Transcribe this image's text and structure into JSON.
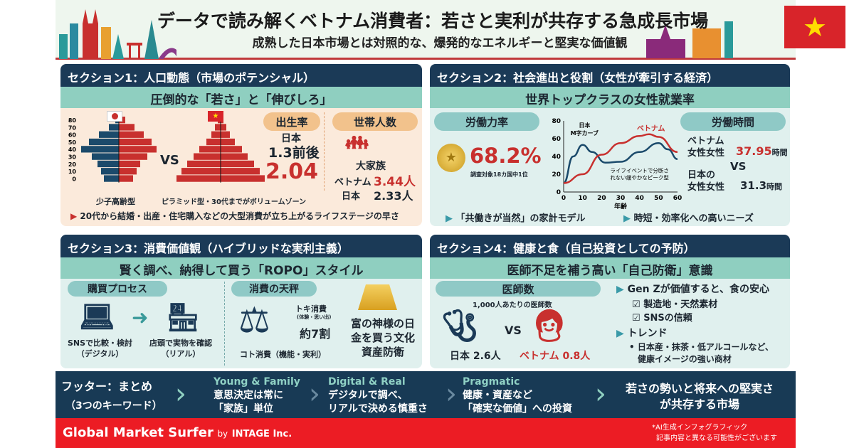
{
  "header": {
    "title": "データで読み解くベトナム消費者：若さと実利が共存する急成長市場",
    "subtitle": "成熟した日本市場とは対照的な、爆発的なエネルギーと堅実な価値観",
    "flag_icon": "vietnam-flag-icon"
  },
  "s1": {
    "title": "セクション1：人口動態（市場のポテンシャル）",
    "sub": "圧倒的な「若さ」と「伸びしろ」",
    "vs": "VS",
    "jp_caption": "少子高齢型",
    "vn_caption": "ピラミッド型・30代までがボリュームゾーン",
    "birth": {
      "label": "出生率",
      "jp_label": "日本",
      "jp_value": "1.3前後",
      "vn_value": "2.04"
    },
    "household": {
      "label": "世帯人数",
      "tag": "大家族",
      "vn_label": "ベトナム",
      "vn_value": "3.44人",
      "jp_label": "日本",
      "jp_value": "2.33人"
    },
    "note": "20代から結婚・出産・住宅購入などの大型消費が立ち上がるライフステージの早さ"
  },
  "s2": {
    "title": "セクション2：社会進出と役割（女性が牽引する経済）",
    "sub": "世界トップクラスの女性就業率",
    "labor": {
      "label": "労働力率",
      "value": "68.2%",
      "note": "調査対象18カ国中1位"
    },
    "hours": {
      "label": "労働時間",
      "vn_l1": "ベトナム",
      "vn_l2": "女性女性",
      "vn_value": "37.95",
      "unit": "時間",
      "vs": "VS",
      "jp_l1": "日本の",
      "jp_l2": "女性女性",
      "jp_value": "31.3"
    },
    "notes": [
      "「共働きが当然」の家計モデル",
      "時短・効率化への高いニーズ"
    ]
  },
  "chart_data": [
    {
      "type": "line",
      "xlabel": "年齢",
      "ylabel": "",
      "xlim": [
        0,
        60
      ],
      "ylim": [
        0,
        80
      ],
      "xticks": [
        0,
        10,
        20,
        30,
        40,
        50,
        60
      ],
      "yticks": [
        0,
        20,
        40,
        60,
        80
      ],
      "grid": false,
      "series": [
        {
          "name": "日本 M字カーブ",
          "color": "#1b4a6b",
          "x": [
            0,
            5,
            10,
            15,
            22,
            30,
            40,
            50,
            55,
            60
          ],
          "y": [
            10,
            40,
            53,
            45,
            33,
            34,
            45,
            55,
            48,
            37
          ]
        },
        {
          "name": "ベトナム",
          "color": "#c8302e",
          "x": [
            0,
            10,
            20,
            30,
            40,
            45,
            50,
            60
          ],
          "y": [
            10,
            20,
            42,
            55,
            63,
            65,
            62,
            45
          ]
        }
      ],
      "annotation": [
        "ライフイベントで分断さ",
        "れない緩やかなピーク型"
      ]
    },
    {
      "type": "bar",
      "orientation": "horizontal",
      "categories": [
        "80",
        "70",
        "60",
        "50",
        "40",
        "30",
        "20",
        "10",
        "0"
      ],
      "series": [
        {
          "name": "日本",
          "color": "#1b4a6b",
          "values": [
            5,
            14,
            28,
            42,
            53,
            38,
            30,
            25,
            21
          ]
        },
        {
          "name": "日本",
          "color": "#c8302e",
          "values": [
            9,
            22,
            35,
            46,
            53,
            40,
            30,
            25,
            20
          ]
        },
        {
          "name": "ベトナム",
          "color": "#c8302e",
          "values": [
            4,
            8,
            13,
            20,
            30,
            38,
            47,
            55,
            62
          ]
        }
      ]
    }
  ],
  "s3": {
    "title": "セクション3：消費価値観（ハイブリッドな実利主義）",
    "sub": "賢く調べ、納得して買う「ROPO」スタイル",
    "process": {
      "label": "購買プロセス",
      "digital": "SNSで比較・検討",
      "digital2": "（デジタル）",
      "real": "店頭で実物を確認",
      "real2": "（リアル）"
    },
    "balance": {
      "label": "消費の天秤",
      "toki": "トキ消費",
      "toki_sub": "(体験・思い出)",
      "share": "約7割",
      "koto": "コト消費（機能・実利）"
    },
    "gold": [
      "富の神様の日",
      "金を買う文化",
      "資産防衛"
    ]
  },
  "s4": {
    "title": "セクション4：健康と食（自己投資としての予防）",
    "sub": "医師不足を補う高い「自己防衛」意識",
    "doctors": {
      "label": "医師数",
      "note": "1,000人あたりの医師数",
      "jp": "日本 2.6人",
      "vs": "VS",
      "vn": "ベトナム 0.8人"
    },
    "genz": "Gen Zが価値すると、食の安心",
    "checks": [
      "製造地・天然素材",
      "SNSの信頼"
    ],
    "trend": "トレンド",
    "trend_items": [
      "日本産・抹茶・低アルコールなど、",
      "健康イメージの強い商材"
    ]
  },
  "footer": {
    "title": "フッター：まとめ",
    "title2": "（3つのキーワード）",
    "keywords": [
      {
        "en": "Young & Family",
        "l1": "意思決定は常に",
        "l2": "「家族」単位"
      },
      {
        "en": "Digital & Real",
        "l1": "デジタルで調べ、",
        "l2": "リアルで決める慎重さ"
      },
      {
        "en": "Pragmatic",
        "l1": "健康・資産など",
        "l2": "「確実な価値」への投資"
      }
    ],
    "conclusion1": "若さの勢いと将来への堅実さ",
    "conclusion2": "が共存する市場"
  },
  "band": {
    "brand": "Global Market Surfer",
    "by": "by",
    "company": "INTAGE Inc.",
    "disclaimer1": "*AI生成インフォグラフィック",
    "disclaimer2": "記事内容と異なる可能性がございます"
  }
}
